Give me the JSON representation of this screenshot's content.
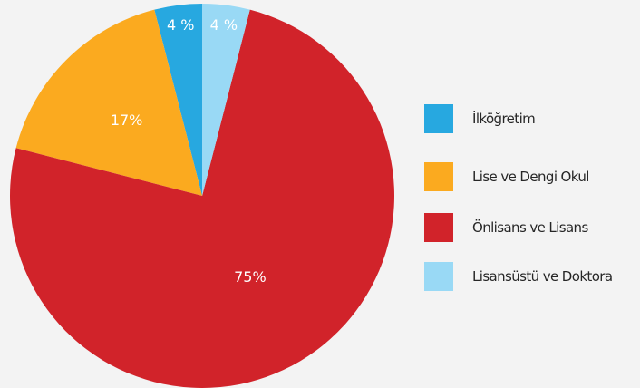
{
  "chart_data": {
    "type": "pie",
    "categories": [
      "İlköğretim",
      "Lise ve Dengi Okul",
      "Önlisans ve Lisans",
      "Lisansüstü ve Doktora"
    ],
    "values": [
      4,
      17,
      75,
      4
    ],
    "data_labels": [
      "4 %",
      "17%",
      "75%",
      "4 %"
    ],
    "colors": [
      "#27a8e0",
      "#fbaa1f",
      "#d1232a",
      "#99d9f5"
    ],
    "legend": "right",
    "start": "12 o'clock, slices run counter-clockwise"
  },
  "legend": {
    "items": [
      {
        "label": "İlköğretim",
        "color": "#27a8e0"
      },
      {
        "label": "Lise ve Dengi Okul",
        "color": "#fbaa1f"
      },
      {
        "label": "Önlisans ve Lisans",
        "color": "#d1232a"
      },
      {
        "label": "Lisansüstü ve Doktora",
        "color": "#99d9f5"
      }
    ]
  }
}
